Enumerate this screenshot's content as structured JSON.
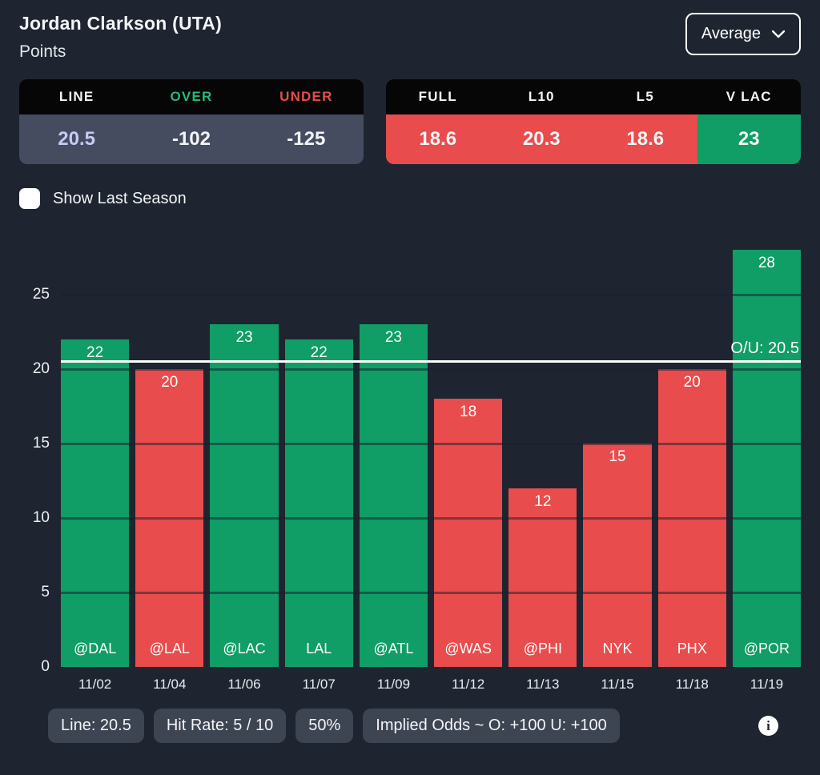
{
  "colors": {
    "background": "#1e2530",
    "header_black": "#060606",
    "slate": "#454c5f",
    "green": "#109d66",
    "red": "#e84c4c",
    "over_green": "#27b877",
    "lavender": "#c8c9f4",
    "chip": "#3d4452"
  },
  "header": {
    "player": "Jordan Clarkson (UTA)",
    "stat": "Points",
    "average_dropdown": "Average"
  },
  "line_table": {
    "headers": [
      "LINE",
      "OVER",
      "UNDER"
    ],
    "values": [
      "20.5",
      "-102",
      "-125"
    ]
  },
  "splits_table": {
    "headers": [
      "FULL",
      "L10",
      "L5",
      "V LAC"
    ],
    "values": [
      "18.6",
      "20.3",
      "18.6",
      "23"
    ],
    "value_styles": [
      "red",
      "red",
      "red",
      "green"
    ]
  },
  "checkbox": {
    "label": "Show Last Season",
    "checked": false
  },
  "chart_data": {
    "type": "bar",
    "title": "Jordan Clarkson (UTA) Points by game",
    "categories": [
      "11/02",
      "11/04",
      "11/06",
      "11/07",
      "11/09",
      "11/12",
      "11/13",
      "11/15",
      "11/18",
      "11/19"
    ],
    "opponents": [
      "@DAL",
      "@LAL",
      "@LAC",
      "LAL",
      "@ATL",
      "@WAS",
      "@PHI",
      "NYK",
      "PHX",
      "@POR"
    ],
    "values": [
      22,
      20,
      23,
      22,
      23,
      18,
      12,
      15,
      20,
      28
    ],
    "colors": [
      "green",
      "red",
      "green",
      "green",
      "green",
      "red",
      "red",
      "red",
      "red",
      "green"
    ],
    "line": {
      "value": 20.5,
      "label": "O/U: 20.5"
    },
    "xlabel": "",
    "ylabel": "",
    "yticks": [
      0,
      5,
      10,
      15,
      20,
      25
    ],
    "ylim": [
      0,
      28.5
    ],
    "grid": "horizontal",
    "legend": "none"
  },
  "footer": {
    "chips": [
      "Line: 20.5",
      "Hit Rate: 5 / 10",
      "50%",
      "Implied Odds ~ O: +100 U: +100"
    ],
    "info_icon": "i"
  }
}
